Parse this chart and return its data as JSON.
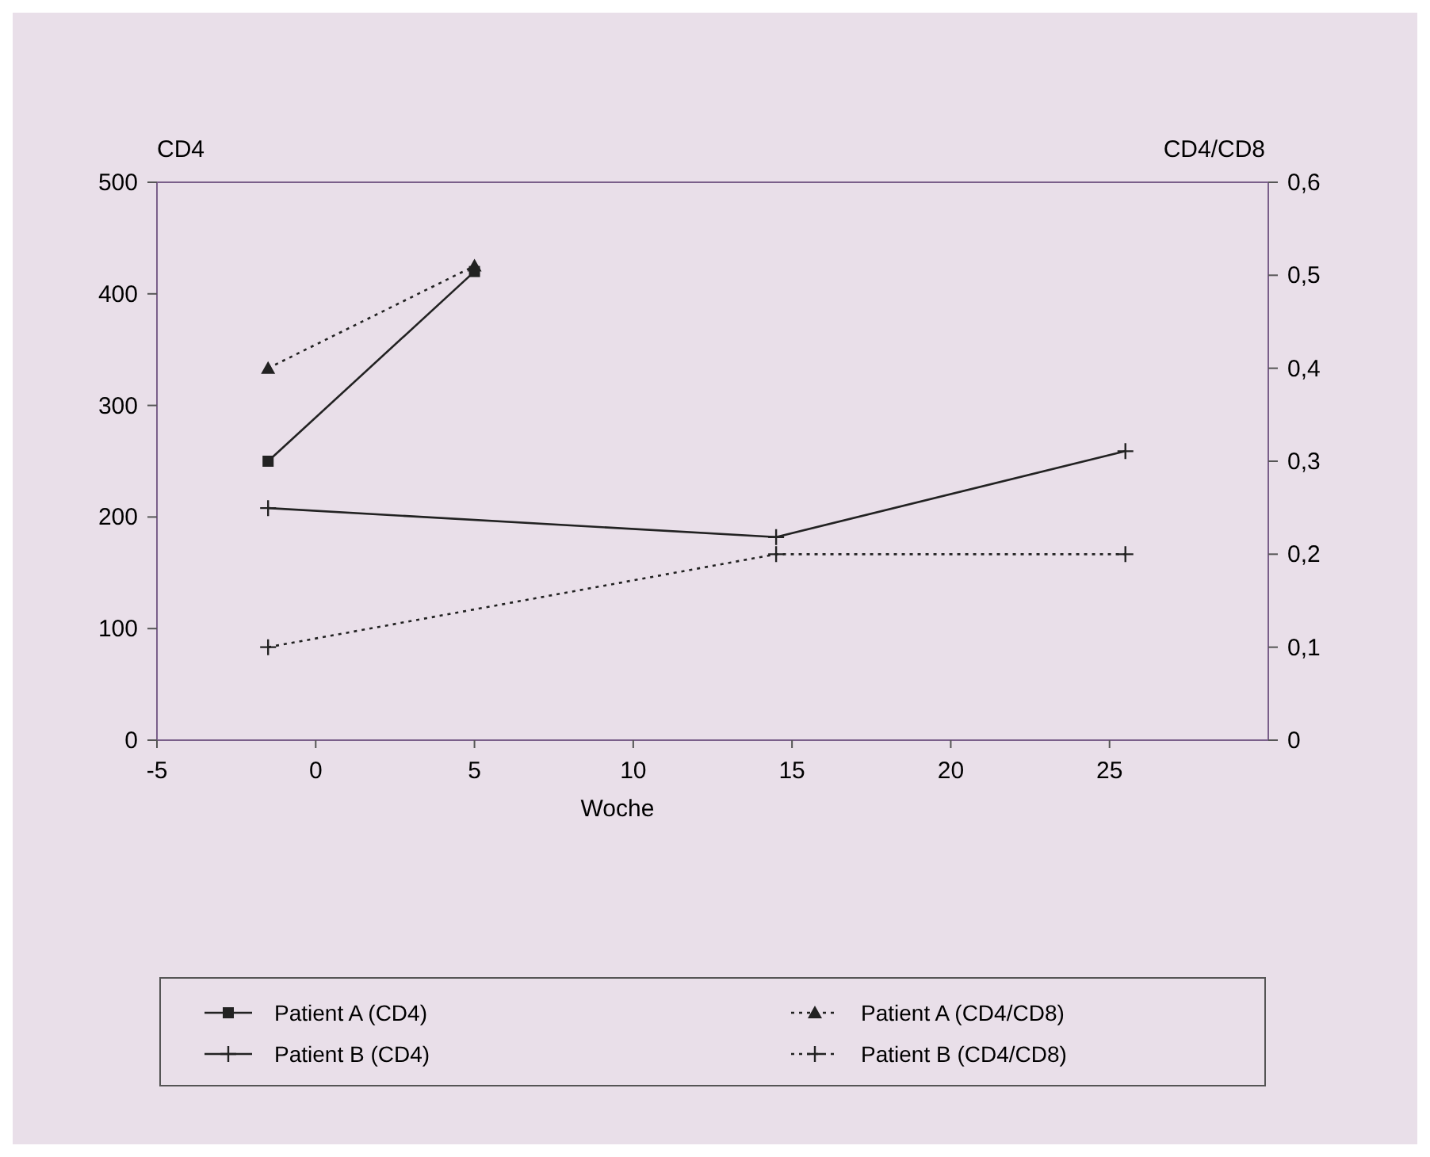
{
  "chart_data": {
    "type": "line",
    "xlabel": "Woche",
    "ylabel": "CD4",
    "y2label": "CD4/CD8",
    "xlim": [
      -5,
      30
    ],
    "xticks": [
      -5,
      0,
      5,
      10,
      15,
      20,
      25
    ],
    "ylim": [
      0,
      500
    ],
    "yticks": [
      0,
      100,
      200,
      300,
      400,
      500
    ],
    "y2lim": [
      0,
      0.6
    ],
    "y2ticks": [
      {
        "value": 0,
        "label": "0"
      },
      {
        "value": 0.1,
        "label": "0,1"
      },
      {
        "value": 0.2,
        "label": "0,2"
      },
      {
        "value": 0.3,
        "label": "0,3"
      },
      {
        "value": 0.4,
        "label": "0,4"
      },
      {
        "value": 0.5,
        "label": "0,5"
      },
      {
        "value": 0.6,
        "label": "0,6"
      }
    ],
    "legend": "bottom",
    "grid": false,
    "series": [
      {
        "name": "Patient A (CD4)",
        "color": "#222222",
        "x": [
          -1.5,
          5
        ],
        "values": [
          250,
          420
        ],
        "marker": "square",
        "line_style": "solid"
      },
      {
        "name": "Patient A (CD4/CD8)",
        "color": "#222222",
        "x": [
          -1.5,
          5
        ],
        "values": [
          0.4,
          0.51
        ],
        "axis": "y2",
        "marker": "triangle",
        "line_style": "dotted"
      },
      {
        "name": "Patient B (CD4)",
        "color": "#222222",
        "x": [
          -1.5,
          14.5,
          25.5
        ],
        "values": [
          208,
          182,
          259
        ],
        "marker": "cross",
        "line_style": "solid"
      },
      {
        "name": "Patient B (CD4/CD8)",
        "color": "#222222",
        "x": [
          -1.5,
          14.5,
          25.5
        ],
        "values": [
          0.1,
          0.2,
          0.2
        ],
        "axis": "y2",
        "marker": "cross",
        "line_style": "dotted"
      }
    ]
  }
}
